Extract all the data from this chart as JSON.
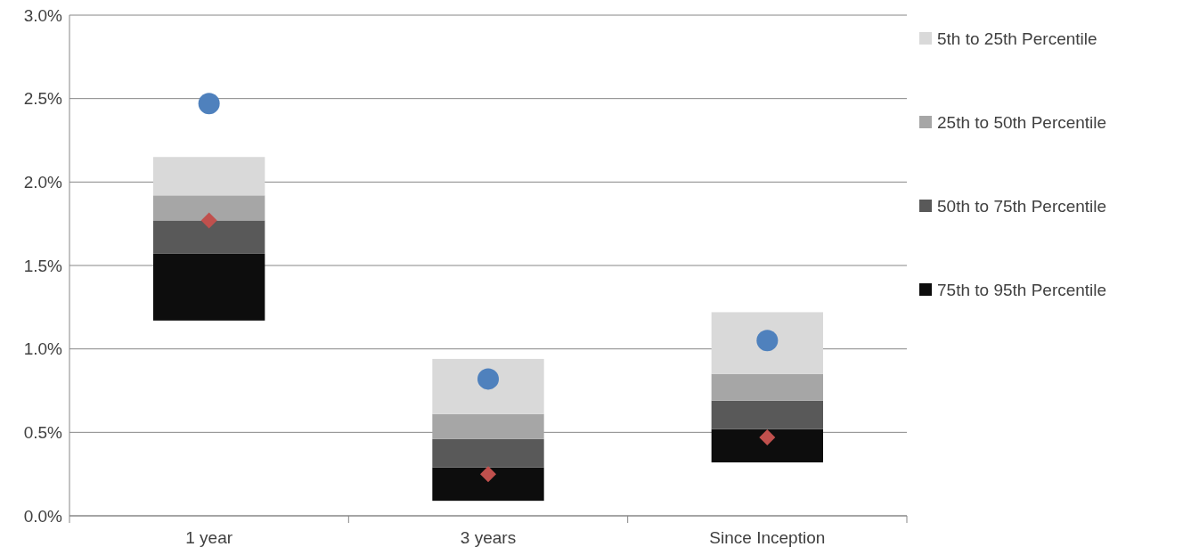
{
  "chart_data": {
    "type": "bar",
    "categories": [
      "1 year",
      "3 years",
      "Since Inception"
    ],
    "series": [
      {
        "name": "75th to 95th Percentile",
        "color": "#0d0d0d",
        "base": [
          1.17,
          0.09,
          0.32
        ],
        "values": [
          0.4,
          0.2,
          0.2
        ]
      },
      {
        "name": "50th to 75th Percentile",
        "color": "#595959",
        "base": [
          1.57,
          0.29,
          0.52
        ],
        "values": [
          0.2,
          0.17,
          0.17
        ]
      },
      {
        "name": "25th to 50th Percentile",
        "color": "#a6a6a6",
        "base": [
          1.77,
          0.46,
          0.69
        ],
        "values": [
          0.15,
          0.15,
          0.16
        ]
      },
      {
        "name": "5th to 25th Percentile",
        "color": "#d9d9d9",
        "base": [
          1.92,
          0.61,
          0.85
        ],
        "values": [
          0.23,
          0.33,
          0.37
        ]
      },
      {
        "type": "scatter",
        "marker": "circle",
        "color": "#4f81bd",
        "x": [
          "1 year",
          "3 years",
          "Since Inception"
        ],
        "values": [
          2.47,
          0.82,
          1.05
        ]
      },
      {
        "type": "scatter",
        "marker": "diamond",
        "color": "#c0504d",
        "x": [
          "1 year",
          "3 years",
          "Since Inception"
        ],
        "values": [
          1.77,
          0.25,
          0.47
        ]
      }
    ],
    "ylim": [
      0,
      3
    ],
    "yticks": [
      {
        "value": 0,
        "label": "0.0%"
      },
      {
        "value": 0.5,
        "label": "0.5%"
      },
      {
        "value": 1,
        "label": "1.0%"
      },
      {
        "value": 1.5,
        "label": "1.5%"
      },
      {
        "value": 2,
        "label": "2.0%"
      },
      {
        "value": 2.5,
        "label": "2.5%"
      },
      {
        "value": 3,
        "label": "3.0%"
      }
    ],
    "grid": "y",
    "legend": "right"
  }
}
